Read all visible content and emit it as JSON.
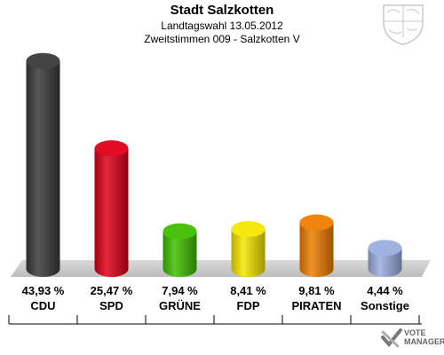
{
  "chart_data": {
    "type": "bar",
    "title": "Stadt Salzkotten",
    "subtitle": "Landtagswahl 13.05.2012",
    "subtitle2": "Zweitstimmen 009 - Salzkotten V",
    "categories": [
      "CDU",
      "SPD",
      "GRÜNE",
      "FDP",
      "PIRATEN",
      "Sonstige"
    ],
    "values": [
      43.93,
      25.47,
      7.94,
      8.41,
      9.81,
      4.44
    ],
    "value_labels": [
      "43,93 %",
      "25,47 %",
      "7,94 %",
      "8,41 %",
      "9,81 %",
      "4,44 %"
    ],
    "colors": [
      "#3a3a3a",
      "#e0001a",
      "#3fbf00",
      "#f5e600",
      "#f07d00",
      "#9aaee0"
    ],
    "ylim": [
      0,
      45
    ],
    "grid": false,
    "legend": "none"
  },
  "branding": {
    "logo_line1": "VOTE",
    "logo_line2": "MANAGER",
    "crest_icon": "nrw-coat-of-arms-icon",
    "logo_icon": "vote-check-icon"
  }
}
